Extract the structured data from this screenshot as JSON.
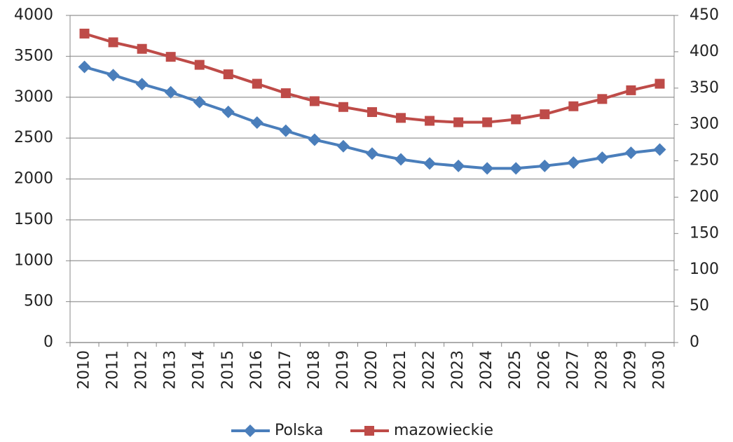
{
  "chart_data": {
    "type": "line",
    "categories": [
      "2010",
      "2011",
      "2012",
      "2013",
      "2014",
      "2015",
      "2016",
      "2017",
      "2018",
      "2019",
      "2020",
      "2021",
      "2022",
      "2023",
      "2024",
      "2025",
      "2026",
      "2027",
      "2028",
      "2029",
      "2030"
    ],
    "series": [
      {
        "name": "Polska",
        "color": "#4a7ebb",
        "marker": "diamond",
        "values": [
          3370,
          3270,
          3160,
          3060,
          2940,
          2820,
          2690,
          2590,
          2480,
          2400,
          2310,
          2240,
          2190,
          2160,
          2130,
          2130,
          2160,
          2200,
          2260,
          2320,
          2360
        ]
      },
      {
        "name": "mazowieckie",
        "color": "#be4b48",
        "marker": "square",
        "axis": "y2",
        "values": [
          425,
          413,
          404,
          393,
          382,
          369,
          356,
          343,
          332,
          324,
          317,
          309,
          305,
          303,
          303,
          307,
          314,
          325,
          335,
          347,
          356
        ]
      }
    ],
    "ylim": [
      0,
      4000
    ],
    "yticks": [
      0,
      500,
      1000,
      1500,
      2000,
      2500,
      3000,
      3500,
      4000
    ],
    "y2lim": [
      0,
      450
    ],
    "y2ticks": [
      0,
      50,
      100,
      150,
      200,
      250,
      300,
      350,
      400,
      450
    ],
    "grid": true,
    "legend": "bottom"
  }
}
